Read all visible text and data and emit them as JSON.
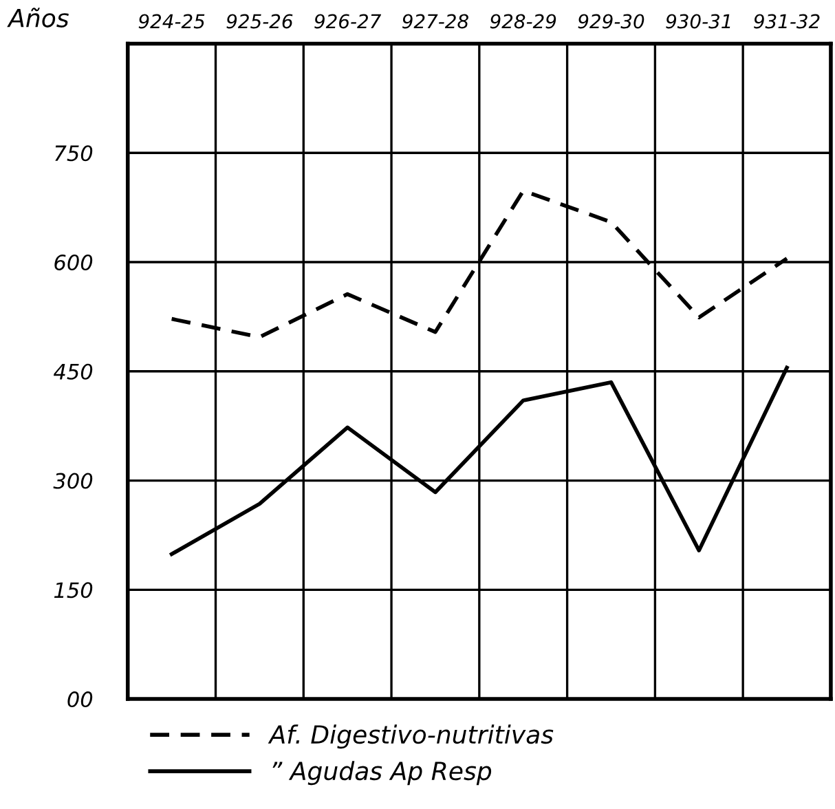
{
  "chart_data": {
    "type": "line",
    "xlabel": "Años",
    "categories": [
      "924-25",
      "925-26",
      "926-27",
      "927-28",
      "928-29",
      "929-30",
      "930-31",
      "931-32"
    ],
    "series": [
      {
        "name": "Af. Digestivo-nutritivas",
        "color": "#000000",
        "line_style": "dashed",
        "values": [
          522,
          497,
          556,
          504,
          698,
          655,
          524,
          605
        ]
      },
      {
        "name": "” Agudas Ap Resp",
        "color": "#000000",
        "line_style": "solid",
        "values": [
          199,
          268,
          373,
          284,
          410,
          435,
          204,
          455
        ]
      }
    ],
    "ylim": [
      0,
      900
    ],
    "yticks": [
      {
        "value": 0,
        "label": "00"
      },
      150,
      300,
      450,
      600,
      750
    ],
    "grid": true,
    "legend": "bottom",
    "marker": "none"
  }
}
